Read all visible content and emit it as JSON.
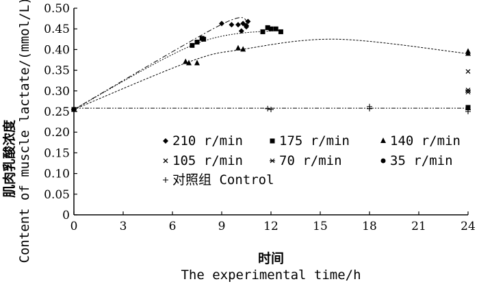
{
  "chart_data": {
    "type": "scatter",
    "xlabel_cn": "时间",
    "xlabel": "The experimental time/h",
    "ylabel_cn": "肌肉乳酸浓度",
    "ylabel": "Content of muscle lactate/(mmol/L)",
    "xlim": [
      0,
      24
    ],
    "ylim": [
      0,
      0.5
    ],
    "x_ticks": [
      "0",
      "3",
      "6",
      "9",
      "12",
      "15",
      "18",
      "21",
      "24"
    ],
    "y_ticks": [
      "0",
      "0.05",
      "0.10",
      "0.15",
      "0.20",
      "0.25",
      "0.30",
      "0.35",
      "0.40",
      "0.45",
      "0.50"
    ],
    "grid": false,
    "legend_position": "center",
    "series": [
      {
        "name": "210 r/min",
        "marker": "diamond",
        "points": [
          [
            0,
            0.255
          ],
          [
            9.0,
            0.463
          ],
          [
            9.6,
            0.46
          ],
          [
            10.0,
            0.46
          ],
          [
            10.2,
            0.445
          ],
          [
            10.3,
            0.463
          ],
          [
            10.5,
            0.458
          ],
          [
            10.6,
            0.468
          ],
          [
            10.5,
            0.455
          ]
        ],
        "trend": [
          [
            0,
            0.255
          ],
          [
            9.0,
            0.461
          ],
          [
            10.6,
            0.465
          ]
        ]
      },
      {
        "name": "175 r/min",
        "marker": "square",
        "points": [
          [
            0,
            0.255
          ],
          [
            7.2,
            0.41
          ],
          [
            7.5,
            0.418
          ],
          [
            7.8,
            0.427
          ],
          [
            7.9,
            0.425
          ],
          [
            11.5,
            0.443
          ],
          [
            11.8,
            0.453
          ],
          [
            12.0,
            0.45
          ],
          [
            12.3,
            0.45
          ],
          [
            12.6,
            0.443
          ],
          [
            24,
            0.26
          ]
        ],
        "trend": [
          [
            0,
            0.255
          ],
          [
            7.5,
            0.415
          ],
          [
            12.6,
            0.447
          ]
        ]
      },
      {
        "name": "140 r/min",
        "marker": "triangle",
        "points": [
          [
            0,
            0.255
          ],
          [
            6.8,
            0.37
          ],
          [
            7.0,
            0.367
          ],
          [
            7.5,
            0.367
          ],
          [
            10.0,
            0.403
          ],
          [
            10.3,
            0.4
          ],
          [
            24,
            0.39
          ],
          [
            24,
            0.395
          ]
        ],
        "trend": [
          [
            0,
            0.255
          ],
          [
            7.0,
            0.37
          ],
          [
            10.2,
            0.4
          ],
          [
            16,
            0.425
          ],
          [
            24,
            0.39
          ]
        ]
      },
      {
        "name": "105 r/min",
        "marker": "x",
        "points": [
          [
            0,
            0.255
          ],
          [
            24,
            0.347
          ]
        ]
      },
      {
        "name": "70 r/min",
        "marker": "asterisk",
        "points": [
          [
            0,
            0.255
          ],
          [
            24,
            0.302
          ],
          [
            24,
            0.297
          ]
        ]
      },
      {
        "name": "35 r/min",
        "marker": "circle",
        "points": [
          [
            0,
            0.255
          ],
          [
            24,
            0.26
          ]
        ]
      },
      {
        "name": "对照组 Control",
        "marker": "plus",
        "points": [
          [
            0,
            0.255
          ],
          [
            11.8,
            0.257
          ],
          [
            12.0,
            0.255
          ],
          [
            18.0,
            0.262
          ],
          [
            18.0,
            0.257
          ],
          [
            24,
            0.254
          ],
          [
            24,
            0.25
          ]
        ],
        "trend": [
          [
            0,
            0.258
          ],
          [
            24,
            0.258
          ]
        ]
      }
    ]
  }
}
